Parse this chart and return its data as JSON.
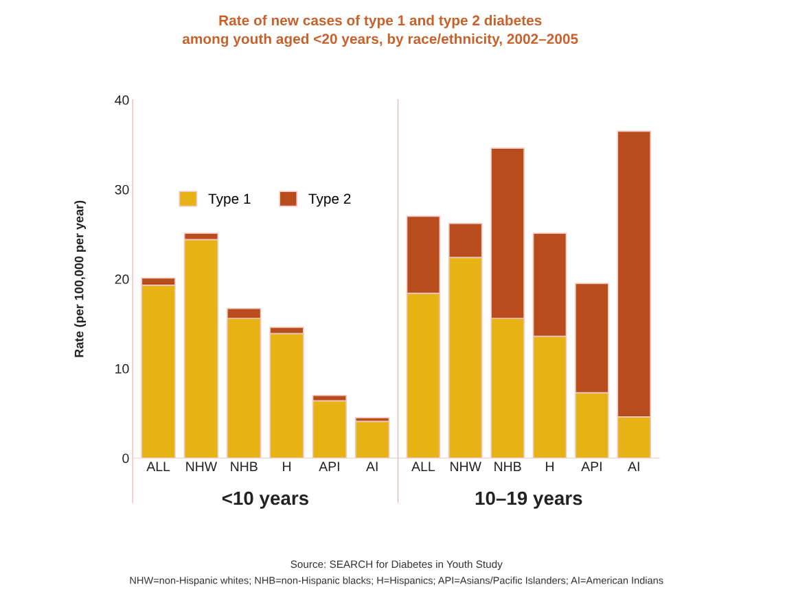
{
  "chart_data": [
    {
      "type": "bar",
      "stacked": true,
      "title": "Rate of new cases of type 1 and type 2 diabetes\namong youth aged <20 years, by race/ethnicity, 2002–2005",
      "xlabel": "<10 years",
      "ylabel": "Rate (per 100,000 per year)",
      "categories": [
        "ALL",
        "NHW",
        "NHB",
        "H",
        "API",
        "AI"
      ],
      "series": [
        {
          "name": "Type 1",
          "color": "#e6b214",
          "values": [
            19.3,
            24.4,
            15.6,
            13.9,
            6.4,
            4.1
          ]
        },
        {
          "name": "Type 2",
          "color": "#b84c1c",
          "values": [
            0.8,
            0.7,
            1.1,
            0.7,
            0.6,
            0.4
          ]
        }
      ],
      "ylim": [
        0,
        40
      ],
      "yticks": [
        0,
        10,
        20,
        30,
        40
      ],
      "grid": false,
      "legend": "top"
    },
    {
      "type": "bar",
      "stacked": true,
      "xlabel": "10–19 years",
      "categories": [
        "ALL",
        "NHW",
        "NHB",
        "H",
        "API",
        "AI"
      ],
      "series": [
        {
          "color": "#e6b214",
          "values": [
            18.4,
            22.4,
            15.6,
            13.6,
            7.3,
            4.6
          ]
        },
        {
          "color": "#b84c1c",
          "values": [
            8.6,
            3.8,
            19.0,
            11.5,
            12.2,
            31.9
          ]
        }
      ],
      "ylim": [
        0,
        40
      ],
      "yticks": [
        0,
        10,
        20,
        30,
        40
      ],
      "grid": false,
      "legend": false,
      "tick_labels": "x",
      "annotations": [
        "Source: SEARCH for Diabetes in Youth Study",
        "NHW=non-Hispanic whites; NHB=non-Hispanic blacks; H=Hispanics; API=Asians/Pacific Islanders; AI=American Indians"
      ]
    }
  ]
}
